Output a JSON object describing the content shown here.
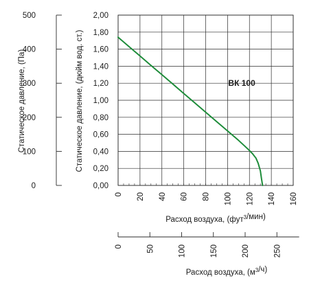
{
  "chart_data": {
    "type": "line",
    "series": [
      {
        "name": "ВК 100",
        "color": "#1e8c3a",
        "x": [
          0,
          10,
          20,
          30,
          40,
          50,
          60,
          70,
          80,
          90,
          100,
          110,
          115,
          120,
          123,
          126,
          128,
          130,
          131,
          132
        ],
        "values": [
          1.74,
          1.63,
          1.52,
          1.41,
          1.3,
          1.19,
          1.08,
          0.97,
          0.86,
          0.75,
          0.64,
          0.53,
          0.47,
          0.41,
          0.37,
          0.32,
          0.26,
          0.17,
          0.08,
          0.0
        ]
      }
    ],
    "x_axis": {
      "label_html": "Расход воздуха, (фут³/мин)",
      "range": [
        0,
        160
      ],
      "ticks": [
        "0",
        "20",
        "40",
        "60",
        "80",
        "100",
        "120",
        "140",
        "160"
      ],
      "tick_values": [
        0,
        20,
        40,
        60,
        80,
        100,
        120,
        140,
        160
      ]
    },
    "x_axis_secondary": {
      "label_html": "Расход воздуха, (м³/ч)",
      "ticks": [
        "0",
        "50",
        "100",
        "150",
        "200",
        "250"
      ],
      "tick_values": [
        0,
        50,
        100,
        150,
        200,
        250
      ]
    },
    "y_axis": {
      "label": "Статическое давление, (дюйм вод. ст.)",
      "range": [
        0,
        2.0
      ],
      "ticks": [
        "0,00",
        "0,20",
        "0,40",
        "0,60",
        "0,80",
        "1,00",
        "1,20",
        "1,40",
        "1,60",
        "1,80",
        "2,00"
      ],
      "tick_values": [
        0,
        0.2,
        0.4,
        0.6,
        0.8,
        1.0,
        1.2,
        1.4,
        1.6,
        1.8,
        2.0
      ]
    },
    "y_axis_secondary": {
      "label": "Статическое давление, (Па)",
      "ticks": [
        "0",
        "100",
        "200",
        "300",
        "400",
        "500"
      ],
      "tick_values": [
        0,
        100,
        200,
        300,
        400,
        500
      ]
    },
    "annotations": [
      {
        "text": "ВК 100",
        "x": 113,
        "y": 1.17
      }
    ],
    "grid": true
  }
}
